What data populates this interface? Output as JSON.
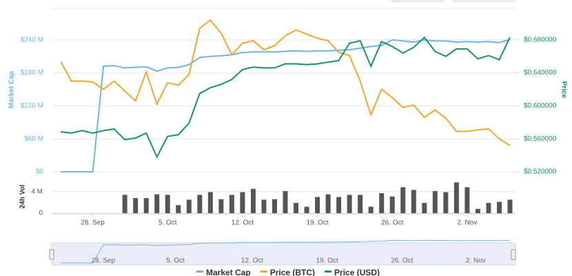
{
  "chart_data": [
    {
      "type": "line",
      "y_label": "Market Cap",
      "y2_label": "Price",
      "categories": [
        null,
        null,
        null,
        "28. Sep",
        null,
        null,
        null,
        null,
        null,
        null,
        "5. Oct",
        null,
        null,
        null,
        null,
        null,
        null,
        "12. Oct",
        null,
        null,
        null,
        null,
        null,
        null,
        "19. Oct",
        null,
        null,
        null,
        null,
        null,
        null,
        "26. Oct",
        null,
        null,
        null,
        null,
        null,
        null,
        "2. Nov",
        null,
        null,
        null,
        null
      ],
      "ylim": [
        0,
        300
      ],
      "yticks": [
        {
          "value": 0,
          "label": "$0"
        },
        {
          "value": 60,
          "label": "$60 M"
        },
        {
          "value": 120,
          "label": "$120 M"
        },
        {
          "value": 180,
          "label": "$180 M"
        },
        {
          "value": 240,
          "label": "$240 M"
        }
      ],
      "y2lim": [
        0.52,
        0.72
      ],
      "y2ticks": [
        {
          "value": 0.52,
          "label": "$0.520000"
        },
        {
          "value": 0.56,
          "label": "$0.560000"
        },
        {
          "value": 0.6,
          "label": "$0.600000"
        },
        {
          "value": 0.64,
          "label": "$0.640000"
        },
        {
          "value": 0.68,
          "label": "$0.680000"
        }
      ],
      "grid": true,
      "series": [
        {
          "name": "Market Cap",
          "color": "#6cb4e4",
          "values": [
            0,
            0,
            0,
            0,
            192,
            193,
            189,
            190,
            191,
            183,
            189,
            190,
            195,
            208,
            210,
            211,
            213,
            217,
            218,
            218,
            218,
            219,
            220,
            219,
            220,
            220,
            221,
            222,
            225,
            228,
            230,
            240,
            238,
            236,
            240,
            238,
            238,
            236,
            237,
            236,
            237,
            235,
            241
          ]
        },
        {
          "name": "Price (BTC)",
          "color": "#f5a623",
          "axis": "y2",
          "values": [
            0.654,
            0.63,
            0.63,
            0.629,
            0.62,
            0.63,
            0.618,
            0.606,
            0.641,
            0.602,
            0.628,
            0.625,
            0.638,
            0.694,
            0.704,
            0.688,
            0.662,
            0.676,
            0.679,
            0.668,
            0.673,
            0.685,
            0.692,
            0.687,
            0.682,
            0.679,
            0.665,
            0.661,
            0.63,
            0.589,
            0.62,
            0.61,
            0.598,
            0.601,
            0.586,
            0.595,
            0.585,
            0.569,
            0.569,
            0.571,
            0.572,
            0.56,
            0.552
          ]
        },
        {
          "name": "Price (USD)",
          "color": "#13965e",
          "axis": "y2",
          "values": [
            0.5685,
            0.567,
            0.57,
            0.567,
            0.57,
            0.572,
            0.559,
            0.561,
            0.567,
            0.538,
            0.563,
            0.565,
            0.579,
            0.615,
            0.622,
            0.626,
            0.632,
            0.644,
            0.647,
            0.646,
            0.646,
            0.651,
            0.651,
            0.65,
            0.651,
            0.653,
            0.655,
            0.676,
            0.679,
            0.648,
            0.678,
            0.672,
            0.664,
            0.671,
            0.683,
            0.666,
            0.66,
            0.669,
            0.669,
            0.657,
            0.661,
            0.656,
            0.683
          ]
        }
      ]
    },
    {
      "type": "bar",
      "y_label": "24h Vol",
      "color": "#555555",
      "ylim": [
        0,
        6
      ],
      "yticks": [
        0,
        {
          "value": 4,
          "label": "4 M"
        }
      ],
      "values": [
        null,
        null,
        null,
        null,
        null,
        null,
        3.4,
        2.8,
        2.8,
        3.5,
        3.4,
        1.5,
        2.5,
        3.4,
        3.9,
        2.6,
        3.4,
        3.9,
        4.5,
        2.5,
        2.6,
        4.1,
        1.9,
        1.2,
        3.0,
        3.5,
        3.0,
        3.4,
        3.4,
        1.2,
        3.7,
        3.1,
        4.8,
        4.3,
        1.9,
        4.1,
        3.9,
        5.7,
        4.8,
        0.8,
        1.9,
        2.1,
        2.5
      ]
    }
  ]
}
